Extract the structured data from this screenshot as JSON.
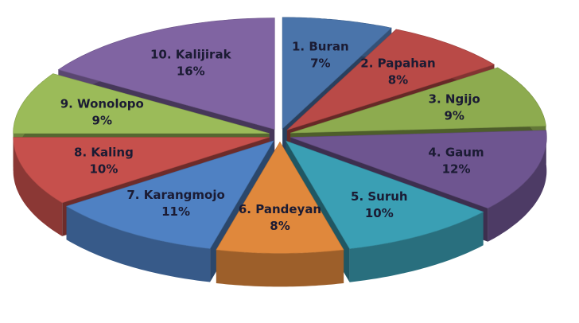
{
  "chart_data": {
    "type": "pie",
    "three_d": true,
    "exploded": true,
    "categories": [
      "1. Buran",
      "2. Papahan",
      "3. Ngijo",
      "4. Gaum",
      "5. Suruh",
      "6. Pandeyan",
      "7. Karangmojo",
      "8. Kaling",
      "9. Wonolopo",
      "10. Kalijirak"
    ],
    "values": [
      7,
      8,
      9,
      12,
      10,
      8,
      11,
      10,
      9,
      16
    ],
    "value_labels": [
      "7%",
      "8%",
      "9%",
      "12%",
      "10%",
      "8%",
      "11%",
      "10%",
      "9%",
      "16%"
    ],
    "colors": [
      "#4a74aa",
      "#b94a47",
      "#8dab4f",
      "#6e5590",
      "#3a9fb4",
      "#e0883c",
      "#4f81c3",
      "#c6504c",
      "#9bbb59",
      "#8064a2"
    ]
  }
}
